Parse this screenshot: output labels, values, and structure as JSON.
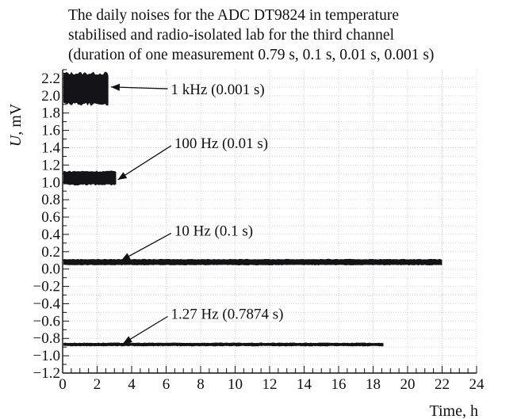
{
  "chart_data": {
    "type": "line",
    "title": [
      "The daily noises for the ADC DT9824 in temperature",
      "stabilised and radio-isolated lab for the third channel",
      "(duration of one measurement 0.79 s, 0.1 s, 0.01 s, 0.001 s)"
    ],
    "xlabel": "Time, h",
    "ylabel_var": "U",
    "ylabel_unit": ", mV",
    "xlim": [
      0,
      24
    ],
    "ylim": [
      -1.2,
      2.3
    ],
    "x_ticks": [
      0,
      2,
      4,
      6,
      8,
      10,
      12,
      14,
      16,
      18,
      20,
      22,
      24
    ],
    "x_tick_labels": [
      "0",
      "2",
      "4",
      "6",
      "8",
      "10",
      "12",
      "14",
      "16",
      "18",
      "20",
      "22",
      "24"
    ],
    "y_ticks": [
      -1.2,
      -1.0,
      -0.8,
      -0.6,
      -0.4,
      -0.2,
      0.0,
      0.2,
      0.4,
      0.6,
      0.8,
      1.0,
      1.2,
      1.4,
      1.6,
      1.8,
      2.0,
      2.2
    ],
    "y_tick_labels": [
      "−1.2",
      "−1.0",
      "−0.8",
      "−0.6",
      "−0.4",
      "−0.2",
      "0.0",
      "0.2",
      "0.4",
      "0.6",
      "0.8",
      "1.0",
      "1.2",
      "1.4",
      "1.6",
      "1.8",
      "2.0",
      "2.2"
    ],
    "grid": true,
    "series": [
      {
        "name": "1 kHz (0.001 s)",
        "x": [
          0.0,
          2.65
        ],
        "y_center": 2.08,
        "y_band": [
          1.92,
          2.24
        ],
        "label_pos": [
          6.0,
          2.08
        ],
        "arrow_to": [
          2.8,
          2.1
        ]
      },
      {
        "name": "100 Hz (0.01 s)",
        "x": [
          0.0,
          3.1
        ],
        "y_center": 1.05,
        "y_band": [
          0.98,
          1.12
        ],
        "label_pos": [
          6.2,
          1.46
        ],
        "arrow_to": [
          3.2,
          1.03
        ]
      },
      {
        "name": "10 Hz (0.1 s)",
        "x": [
          0.0,
          22.0
        ],
        "y_center": 0.08,
        "y_band": [
          0.05,
          0.11
        ],
        "label_pos": [
          6.2,
          0.45
        ],
        "arrow_to": [
          3.4,
          0.1
        ]
      },
      {
        "name": "1.27 Hz (0.7874 s)",
        "x": [
          0.0,
          18.6
        ],
        "y_center": -0.87,
        "y_band": [
          -0.885,
          -0.855
        ],
        "label_pos": [
          6.0,
          -0.51
        ],
        "arrow_to": [
          3.5,
          -0.86
        ]
      }
    ],
    "color": "#141418"
  }
}
